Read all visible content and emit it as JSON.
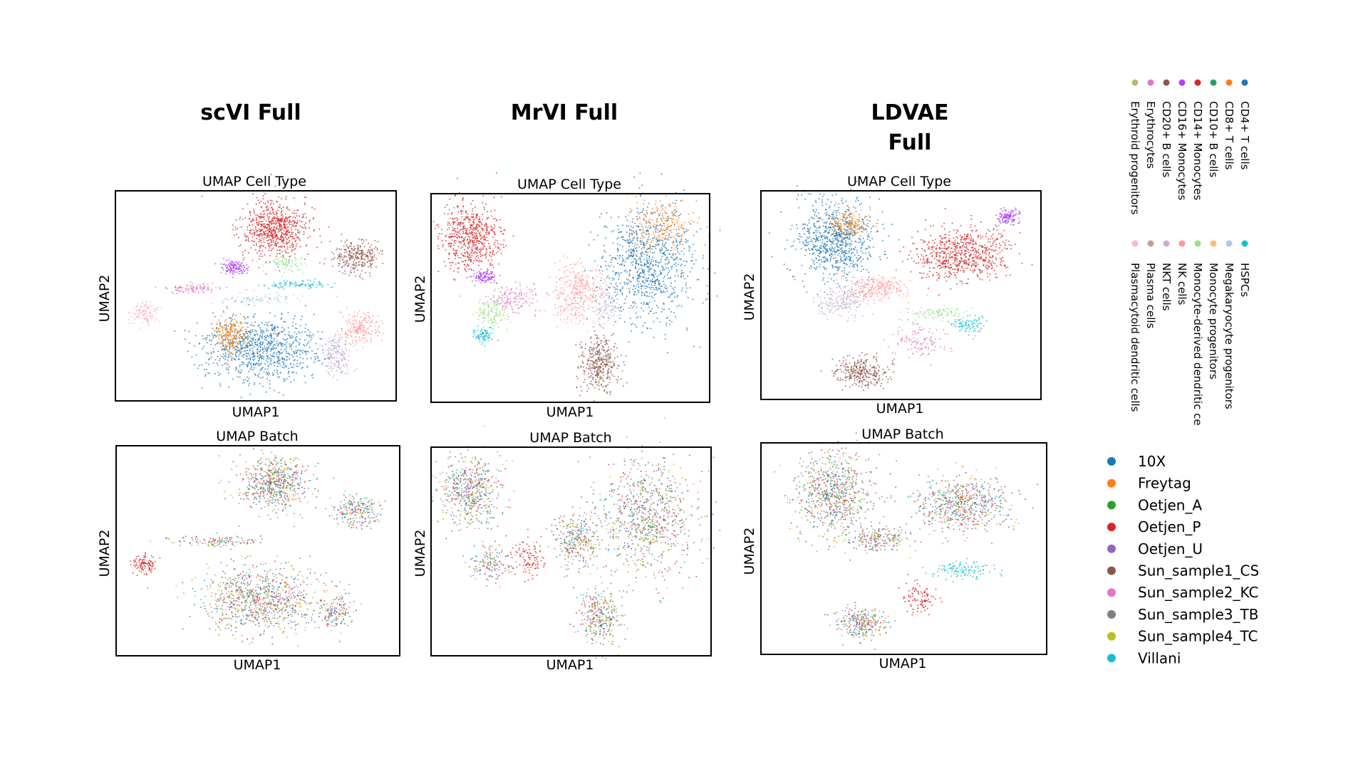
{
  "figure": {
    "columns": [
      {
        "model_title_lines": [
          "scVI Full"
        ]
      },
      {
        "model_title_lines": [
          "MrVI Full"
        ]
      },
      {
        "model_title_lines": [
          "LDVAE",
          "Full"
        ]
      }
    ]
  },
  "chart_data": [
    {
      "type": "scatter",
      "model": "scVI Full",
      "title": "UMAP Cell Type",
      "xlabel": "UMAP1",
      "ylabel": "UMAP2",
      "color_by": "cell_type"
    },
    {
      "type": "scatter",
      "model": "MrVI Full",
      "title": "UMAP Cell Type",
      "xlabel": "UMAP1",
      "ylabel": "UMAP2",
      "color_by": "cell_type"
    },
    {
      "type": "scatter",
      "model": "LDVAE Full",
      "title": "UMAP Cell Type",
      "xlabel": "UMAP1",
      "ylabel": "UMAP2",
      "color_by": "cell_type"
    },
    {
      "type": "scatter",
      "model": "scVI Full",
      "title": "UMAP Batch",
      "xlabel": "UMAP1",
      "ylabel": "UMAP2",
      "color_by": "batch"
    },
    {
      "type": "scatter",
      "model": "MrVI Full",
      "title": "UMAP Batch",
      "xlabel": "UMAP1",
      "ylabel": "UMAP2",
      "color_by": "batch"
    },
    {
      "type": "scatter",
      "model": "LDVAE Full",
      "title": "UMAP Batch",
      "xlabel": "UMAP1",
      "ylabel": "UMAP2",
      "color_by": "batch"
    }
  ],
  "cell_type_legend": [
    [
      {
        "label": "CD4+ T cells",
        "color": "#1f77b4"
      },
      {
        "label": "CD8+ T cells",
        "color": "#ff7f0e"
      },
      {
        "label": "CD10+ B cells",
        "color": "#279e68"
      },
      {
        "label": "CD14+ Monocytes",
        "color": "#d62728"
      },
      {
        "label": "CD16+ Monocytes",
        "color": "#aa40fc"
      },
      {
        "label": "CD20+ B cells",
        "color": "#8c564b"
      },
      {
        "label": "Erythrocytes",
        "color": "#e377c2"
      },
      {
        "label": "Erythroid progenitors",
        "color": "#b5bd61"
      }
    ],
    [
      {
        "label": "HSPCs",
        "color": "#17becf"
      },
      {
        "label": "Megakaryocyte progenitors",
        "color": "#aec7e8"
      },
      {
        "label": "Monocyte progenitors",
        "color": "#ffbb78"
      },
      {
        "label": "Monocyte-derived dendritic ce",
        "color": "#98df8a"
      },
      {
        "label": "NK cells",
        "color": "#ff9896"
      },
      {
        "label": "NKT cells",
        "color": "#c5b0d5"
      },
      {
        "label": "Plasma cells",
        "color": "#c49c94"
      },
      {
        "label": "Plasmacytoid dendritic cells",
        "color": "#f7b6d2"
      }
    ]
  ],
  "batch_legend": [
    {
      "label": "10X",
      "color": "#1f77b4"
    },
    {
      "label": "Freytag",
      "color": "#ff7f0e"
    },
    {
      "label": "Oetjen_A",
      "color": "#2ca02c"
    },
    {
      "label": "Oetjen_P",
      "color": "#d62728"
    },
    {
      "label": "Oetjen_U",
      "color": "#9467bd"
    },
    {
      "label": "Sun_sample1_CS",
      "color": "#8c564b"
    },
    {
      "label": "Sun_sample2_KC",
      "color": "#e377c2"
    },
    {
      "label": "Sun_sample3_TB",
      "color": "#7f7f7f"
    },
    {
      "label": "Sun_sample4_TC",
      "color": "#bcbd22"
    },
    {
      "label": "Villani",
      "color": "#17becf"
    }
  ]
}
